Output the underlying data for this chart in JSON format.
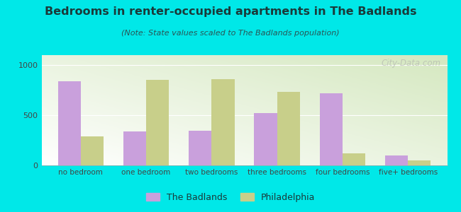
{
  "title": "Bedrooms in renter-occupied apartments in The Badlands",
  "subtitle": "(Note: State values scaled to The Badlands population)",
  "categories": [
    "no bedroom",
    "one bedroom",
    "two bedrooms",
    "three bedrooms",
    "four bedrooms",
    "five+ bedrooms"
  ],
  "badlands_values": [
    840,
    335,
    345,
    520,
    720,
    100
  ],
  "philadelphia_values": [
    290,
    855,
    860,
    730,
    120,
    50
  ],
  "badlands_color": "#c9a0dc",
  "philadelphia_color": "#c8cf8a",
  "background_outer": "#00e8e8",
  "ylim": [
    0,
    1100
  ],
  "yticks": [
    0,
    500,
    1000
  ],
  "bar_width": 0.35,
  "legend_labels": [
    "The Badlands",
    "Philadelphia"
  ],
  "watermark": "City-Data.com",
  "title_color": "#1a3a3a",
  "subtitle_color": "#2a5555",
  "tick_color": "#444444"
}
